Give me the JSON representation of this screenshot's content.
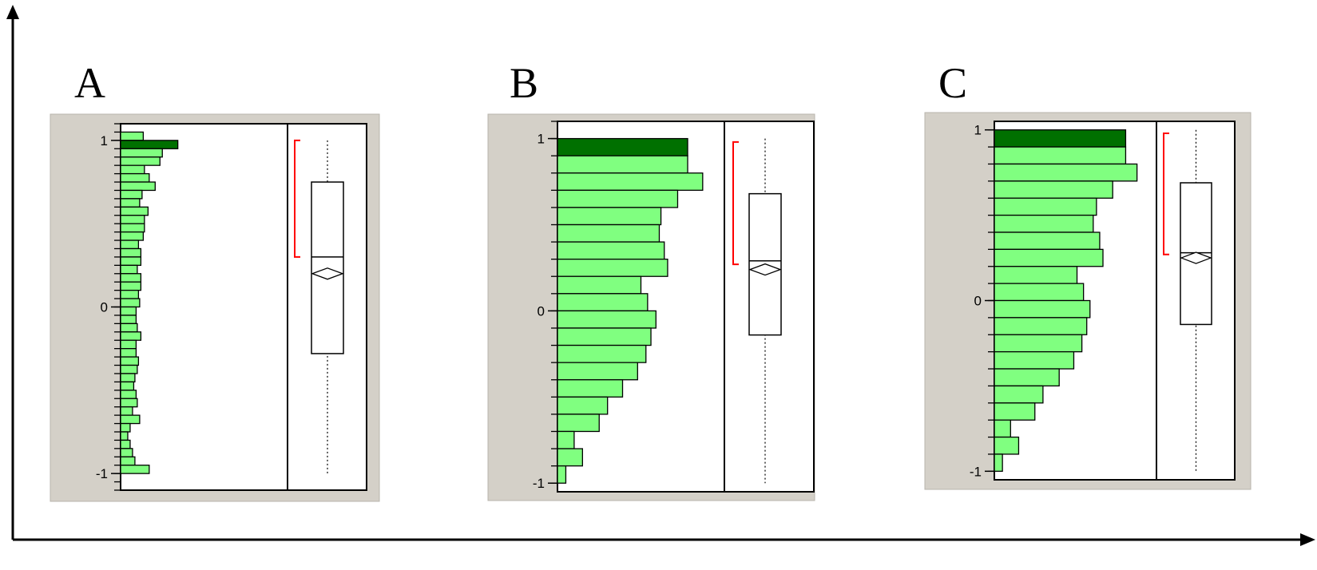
{
  "colors": {
    "bar_fill": "#80ff80",
    "highlight_fill": "#007000",
    "panel_bg": "#d4d0c8",
    "bracket": "#ff0000",
    "stroke": "#000000"
  },
  "chart_data": [
    {
      "type": "histogram-with-boxplot",
      "label": "A",
      "orientation": "horizontal",
      "ylim": [
        -1.1,
        1.1
      ],
      "yticks": [
        1,
        0,
        -1
      ],
      "tick_labels": [
        "1",
        "0",
        "-1"
      ],
      "bin_width": 0.05,
      "bin_centers": [
        1.025,
        0.975,
        0.925,
        0.875,
        0.825,
        0.775,
        0.725,
        0.675,
        0.625,
        0.575,
        0.525,
        0.475,
        0.425,
        0.375,
        0.325,
        0.275,
        0.225,
        0.175,
        0.125,
        0.075,
        0.025,
        -0.025,
        -0.075,
        -0.125,
        -0.175,
        -0.225,
        -0.275,
        -0.325,
        -0.375,
        -0.425,
        -0.475,
        -0.525,
        -0.575,
        -0.625,
        -0.675,
        -0.725,
        -0.775,
        -0.825,
        -0.875,
        -0.925,
        -0.975
      ],
      "counts": [
        19,
        48,
        35,
        33,
        20,
        24,
        29,
        18,
        16,
        23,
        20,
        20,
        19,
        15,
        17,
        17,
        14,
        17,
        17,
        15,
        16,
        13,
        13,
        14,
        17,
        13,
        13,
        15,
        14,
        12,
        11,
        13,
        14,
        10,
        16,
        8,
        6,
        8,
        10,
        12,
        24
      ],
      "highlight_index": 1,
      "xmax": 140,
      "boxplot": {
        "min": -1.0,
        "q1": -0.28,
        "median": 0.3,
        "mean": 0.2,
        "q3": 0.75,
        "max": 1.0,
        "bracket": [
          0.3,
          1.0
        ]
      }
    },
    {
      "type": "histogram-with-boxplot",
      "label": "B",
      "orientation": "horizontal",
      "ylim": [
        -1.05,
        1.1
      ],
      "yticks": [
        1,
        0,
        -1
      ],
      "tick_labels": [
        "1",
        "0",
        "-1"
      ],
      "bin_width": 0.1,
      "bin_centers": [
        0.95,
        0.85,
        0.75,
        0.65,
        0.55,
        0.45,
        0.35,
        0.25,
        0.15,
        0.05,
        -0.05,
        -0.15,
        -0.25,
        -0.35,
        -0.45,
        -0.55,
        -0.65,
        -0.75,
        -0.85,
        -0.95
      ],
      "counts": [
        78,
        78,
        87,
        72,
        62,
        61,
        64,
        66,
        50,
        54,
        59,
        56,
        53,
        48,
        39,
        30,
        25,
        10,
        15,
        5
      ],
      "highlight_index": 0,
      "xmax": 100,
      "boxplot": {
        "min": -1.0,
        "q1": -0.14,
        "median": 0.29,
        "mean": 0.24,
        "q3": 0.68,
        "max": 1.0,
        "bracket": [
          0.27,
          0.98
        ]
      }
    },
    {
      "type": "histogram-with-boxplot",
      "label": "C",
      "orientation": "horizontal",
      "ylim": [
        -1.05,
        1.05
      ],
      "yticks": [
        1,
        0,
        -1
      ],
      "tick_labels": [
        "1",
        "0",
        "-1"
      ],
      "bin_width": 0.1,
      "bin_centers": [
        0.95,
        0.85,
        0.75,
        0.65,
        0.55,
        0.45,
        0.35,
        0.25,
        0.15,
        0.05,
        -0.05,
        -0.15,
        -0.25,
        -0.35,
        -0.45,
        -0.55,
        -0.65,
        -0.75,
        -0.85,
        -0.95
      ],
      "counts": [
        81,
        81,
        88,
        73,
        63,
        61,
        65,
        67,
        51,
        55,
        59,
        57,
        54,
        49,
        40,
        30,
        25,
        10,
        15,
        5
      ],
      "highlight_index": 0,
      "xmax": 100,
      "boxplot": {
        "min": -1.0,
        "q1": -0.14,
        "median": 0.28,
        "mean": 0.25,
        "q3": 0.69,
        "max": 1.0,
        "bracket": [
          0.27,
          0.98
        ]
      }
    }
  ]
}
